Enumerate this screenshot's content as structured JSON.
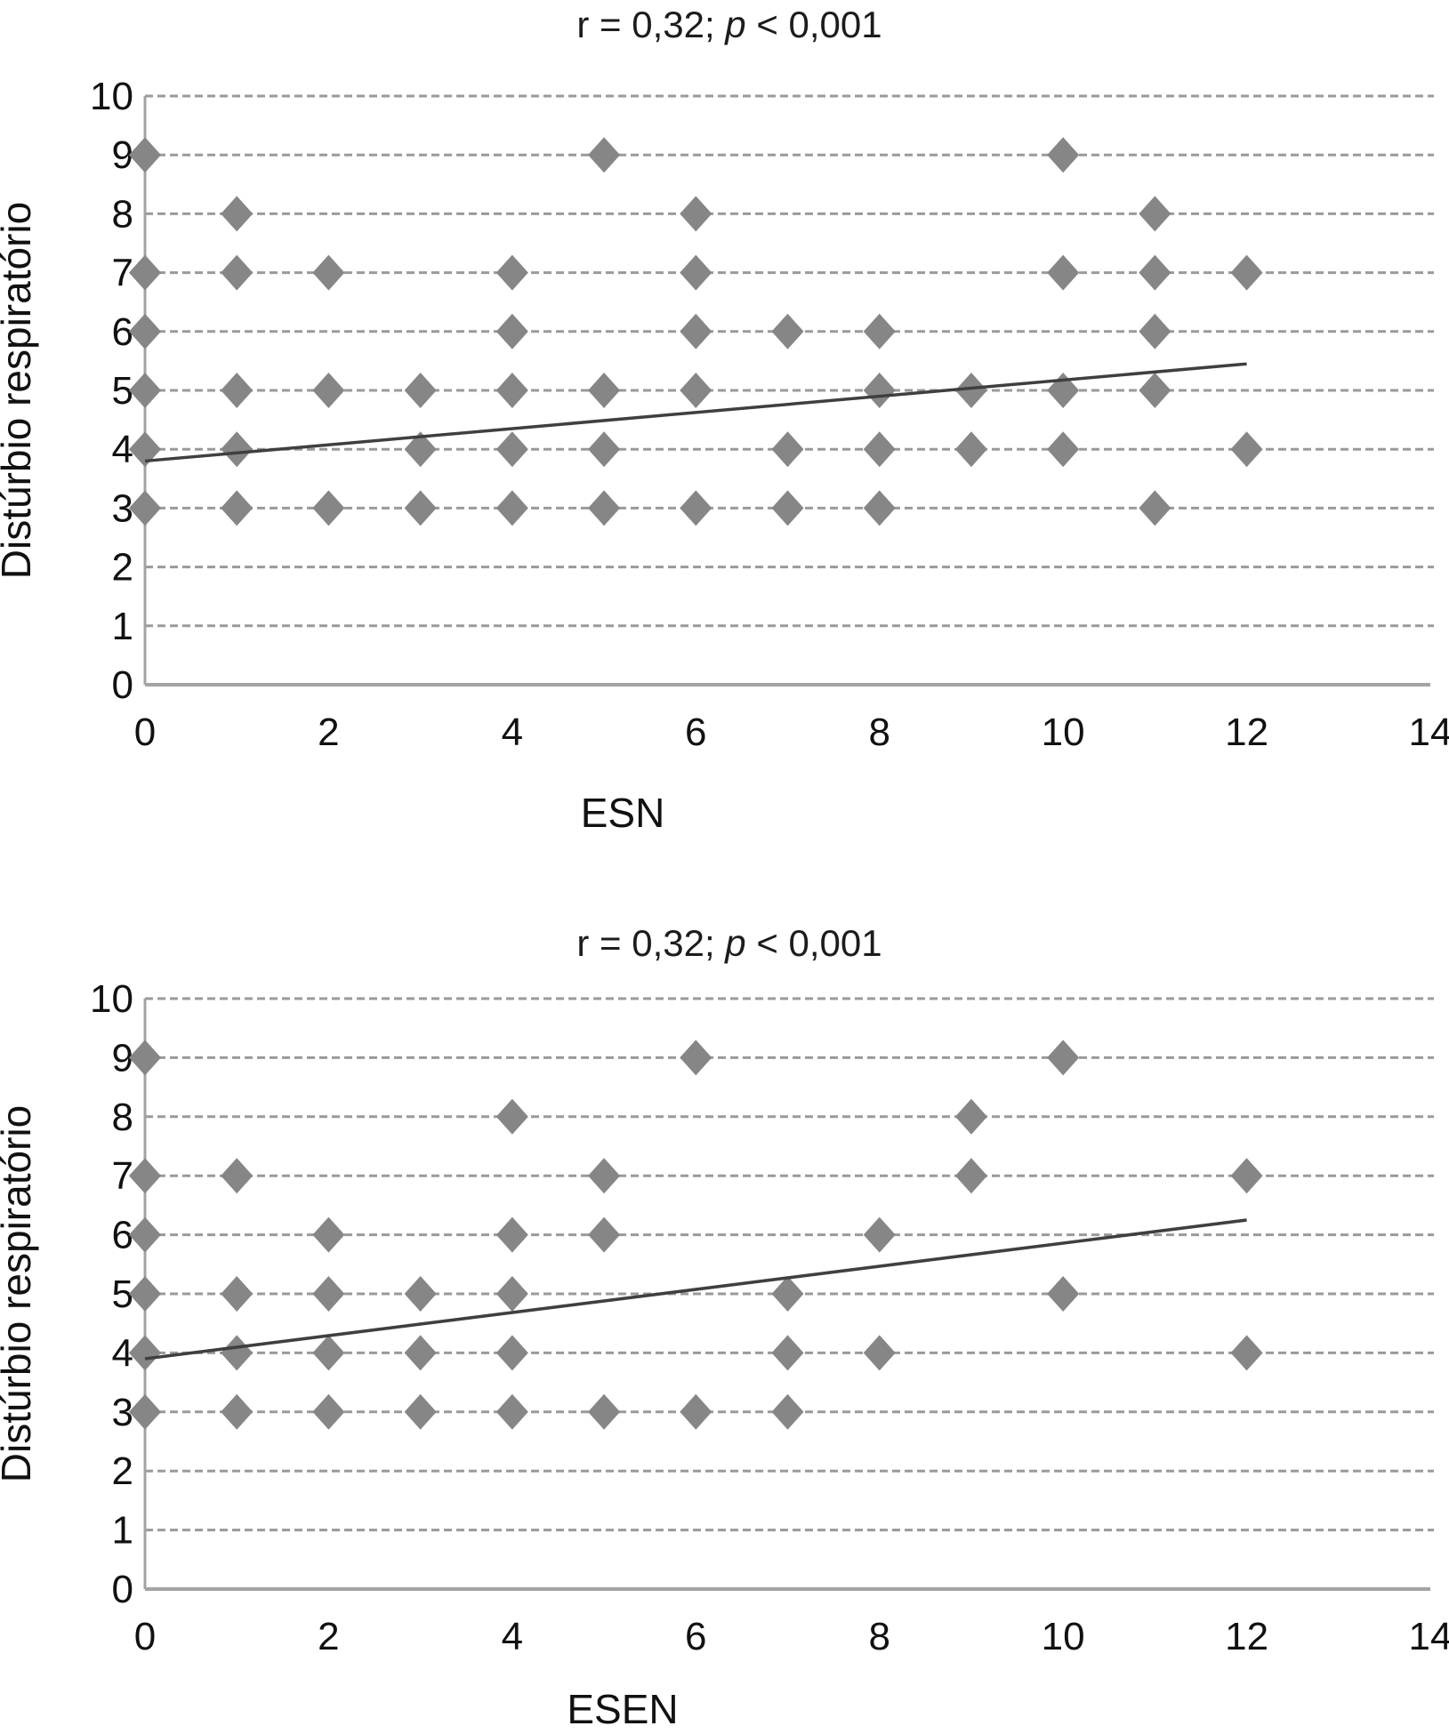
{
  "colors": {
    "marker": "#868686",
    "grid": "#9a9a9a",
    "axis": "#a3a3a3",
    "trend": "#3f3f3f",
    "text": "#111111",
    "background": "#ffffff"
  },
  "chart_data": [
    {
      "type": "scatter",
      "title": "r = 0,32; p < 0,001",
      "title_parts": {
        "prefix": "r = 0,32; ",
        "italic": "p",
        "suffix": " < 0,001"
      },
      "xlabel": "ESN",
      "ylabel": "Distúrbio respiratório",
      "xlim": [
        0,
        14
      ],
      "ylim": [
        0,
        10
      ],
      "x_ticks": [
        0,
        2,
        4,
        6,
        8,
        10,
        12,
        14
      ],
      "y_ticks": [
        0,
        1,
        2,
        3,
        4,
        5,
        6,
        7,
        8,
        9,
        10
      ],
      "grid": "horizontal dashed",
      "legend": "none",
      "marker": "diamond",
      "points": [
        [
          0,
          9
        ],
        [
          5,
          9
        ],
        [
          10,
          9
        ],
        [
          1,
          8
        ],
        [
          6,
          8
        ],
        [
          11,
          8
        ],
        [
          0,
          7
        ],
        [
          1,
          7
        ],
        [
          2,
          7
        ],
        [
          4,
          7
        ],
        [
          6,
          7
        ],
        [
          10,
          7
        ],
        [
          11,
          7
        ],
        [
          12,
          7
        ],
        [
          0,
          6
        ],
        [
          4,
          6
        ],
        [
          6,
          6
        ],
        [
          7,
          6
        ],
        [
          8,
          6
        ],
        [
          11,
          6
        ],
        [
          0,
          5
        ],
        [
          1,
          5
        ],
        [
          2,
          5
        ],
        [
          3,
          5
        ],
        [
          4,
          5
        ],
        [
          5,
          5
        ],
        [
          6,
          5
        ],
        [
          8,
          5
        ],
        [
          9,
          5
        ],
        [
          10,
          5
        ],
        [
          11,
          5
        ],
        [
          0,
          4
        ],
        [
          1,
          4
        ],
        [
          3,
          4
        ],
        [
          4,
          4
        ],
        [
          5,
          4
        ],
        [
          7,
          4
        ],
        [
          8,
          4
        ],
        [
          9,
          4
        ],
        [
          10,
          4
        ],
        [
          12,
          4
        ],
        [
          0,
          3
        ],
        [
          1,
          3
        ],
        [
          2,
          3
        ],
        [
          3,
          3
        ],
        [
          4,
          3
        ],
        [
          5,
          3
        ],
        [
          6,
          3
        ],
        [
          7,
          3
        ],
        [
          8,
          3
        ],
        [
          11,
          3
        ]
      ],
      "trendline": {
        "x1": 0,
        "y1": 3.8,
        "x2": 12,
        "y2": 5.45
      }
    },
    {
      "type": "scatter",
      "title": "r = 0,32; p < 0,001",
      "title_parts": {
        "prefix": "r = 0,32; ",
        "italic": "p",
        "suffix": " < 0,001"
      },
      "xlabel": "ESEN",
      "ylabel": "Distúrbio respiratório",
      "xlim": [
        0,
        14
      ],
      "ylim": [
        0,
        10
      ],
      "x_ticks": [
        0,
        2,
        4,
        6,
        8,
        10,
        12,
        14
      ],
      "y_ticks": [
        0,
        1,
        2,
        3,
        4,
        5,
        6,
        7,
        8,
        9,
        10
      ],
      "grid": "horizontal dashed",
      "legend": "none",
      "marker": "diamond",
      "points": [
        [
          0,
          9
        ],
        [
          6,
          9
        ],
        [
          10,
          9
        ],
        [
          4,
          8
        ],
        [
          9,
          8
        ],
        [
          0,
          7
        ],
        [
          1,
          7
        ],
        [
          5,
          7
        ],
        [
          9,
          7
        ],
        [
          12,
          7
        ],
        [
          0,
          6
        ],
        [
          2,
          6
        ],
        [
          4,
          6
        ],
        [
          5,
          6
        ],
        [
          8,
          6
        ],
        [
          0,
          5
        ],
        [
          1,
          5
        ],
        [
          2,
          5
        ],
        [
          3,
          5
        ],
        [
          4,
          5
        ],
        [
          7,
          5
        ],
        [
          10,
          5
        ],
        [
          0,
          4
        ],
        [
          1,
          4
        ],
        [
          2,
          4
        ],
        [
          3,
          4
        ],
        [
          4,
          4
        ],
        [
          7,
          4
        ],
        [
          8,
          4
        ],
        [
          12,
          4
        ],
        [
          0,
          3
        ],
        [
          1,
          3
        ],
        [
          2,
          3
        ],
        [
          3,
          3
        ],
        [
          4,
          3
        ],
        [
          5,
          3
        ],
        [
          6,
          3
        ],
        [
          7,
          3
        ]
      ],
      "trendline": {
        "x1": 0,
        "y1": 3.9,
        "x2": 12,
        "y2": 6.25
      }
    }
  ]
}
